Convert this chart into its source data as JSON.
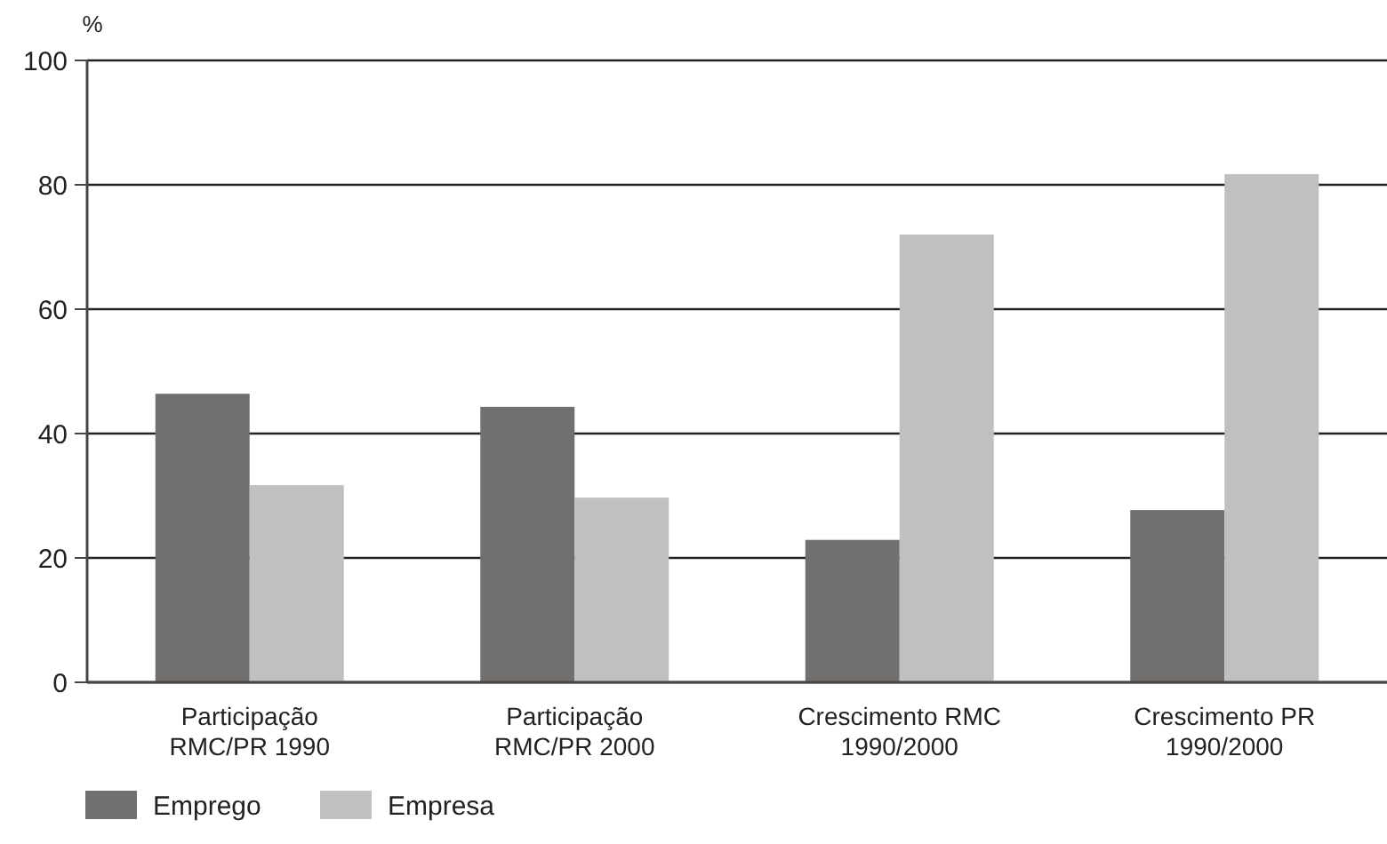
{
  "chart_data": {
    "type": "bar",
    "ylabel": "%",
    "categories": [
      "Participação\nRMC/PR 1990",
      "Participação\nRMC/PR 2000",
      "Crescimento RMC\n1990/2000",
      "Crescimento PR\n1990/2000"
    ],
    "series": [
      {
        "name": "Emprego",
        "color": "#71706e",
        "values": [
          46.4,
          44.3,
          22.9,
          27.7
        ]
      },
      {
        "name": "Empresa",
        "color": "#c0c0c0",
        "values": [
          31.7,
          29.7,
          72,
          81.7
        ]
      }
    ],
    "ylim": [
      0,
      100
    ],
    "yticks": [
      0,
      20,
      40,
      60,
      80,
      100
    ],
    "grid": "y",
    "legend": "bottom left"
  }
}
